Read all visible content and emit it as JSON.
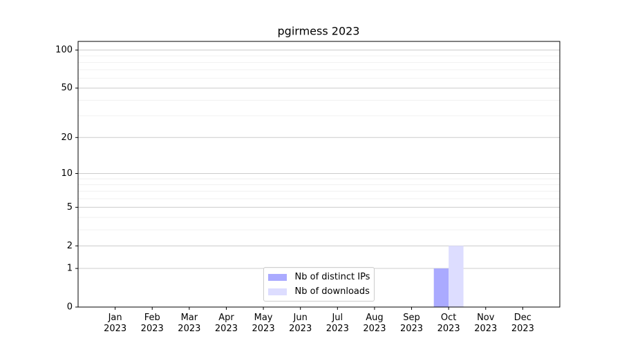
{
  "chart_data": {
    "type": "bar",
    "title": "pgirmess 2023",
    "categories": [
      "Jan 2023",
      "Feb 2023",
      "Mar 2023",
      "Apr 2023",
      "May 2023",
      "Jun 2023",
      "Jul 2023",
      "Aug 2023",
      "Sep 2023",
      "Oct 2023",
      "Nov 2023",
      "Dec 2023"
    ],
    "series": [
      {
        "name": "Nb of distinct IPs",
        "color": "#aaaaff",
        "values": [
          0,
          0,
          0,
          0,
          0,
          0,
          0,
          0,
          0,
          1,
          0,
          0
        ]
      },
      {
        "name": "Nb of downloads",
        "color": "#ddddff",
        "values": [
          0,
          0,
          0,
          0,
          0,
          0,
          0,
          0,
          0,
          2,
          0,
          0
        ]
      }
    ],
    "yscale": "log1p",
    "ylim": [
      0,
      117
    ],
    "yticks": [
      0,
      1,
      2,
      5,
      10,
      20,
      50,
      100
    ],
    "yminorticks": [
      3,
      4,
      6,
      7,
      8,
      9,
      30,
      40,
      60,
      70,
      80,
      90
    ],
    "grid": true,
    "legend": "lower center"
  }
}
